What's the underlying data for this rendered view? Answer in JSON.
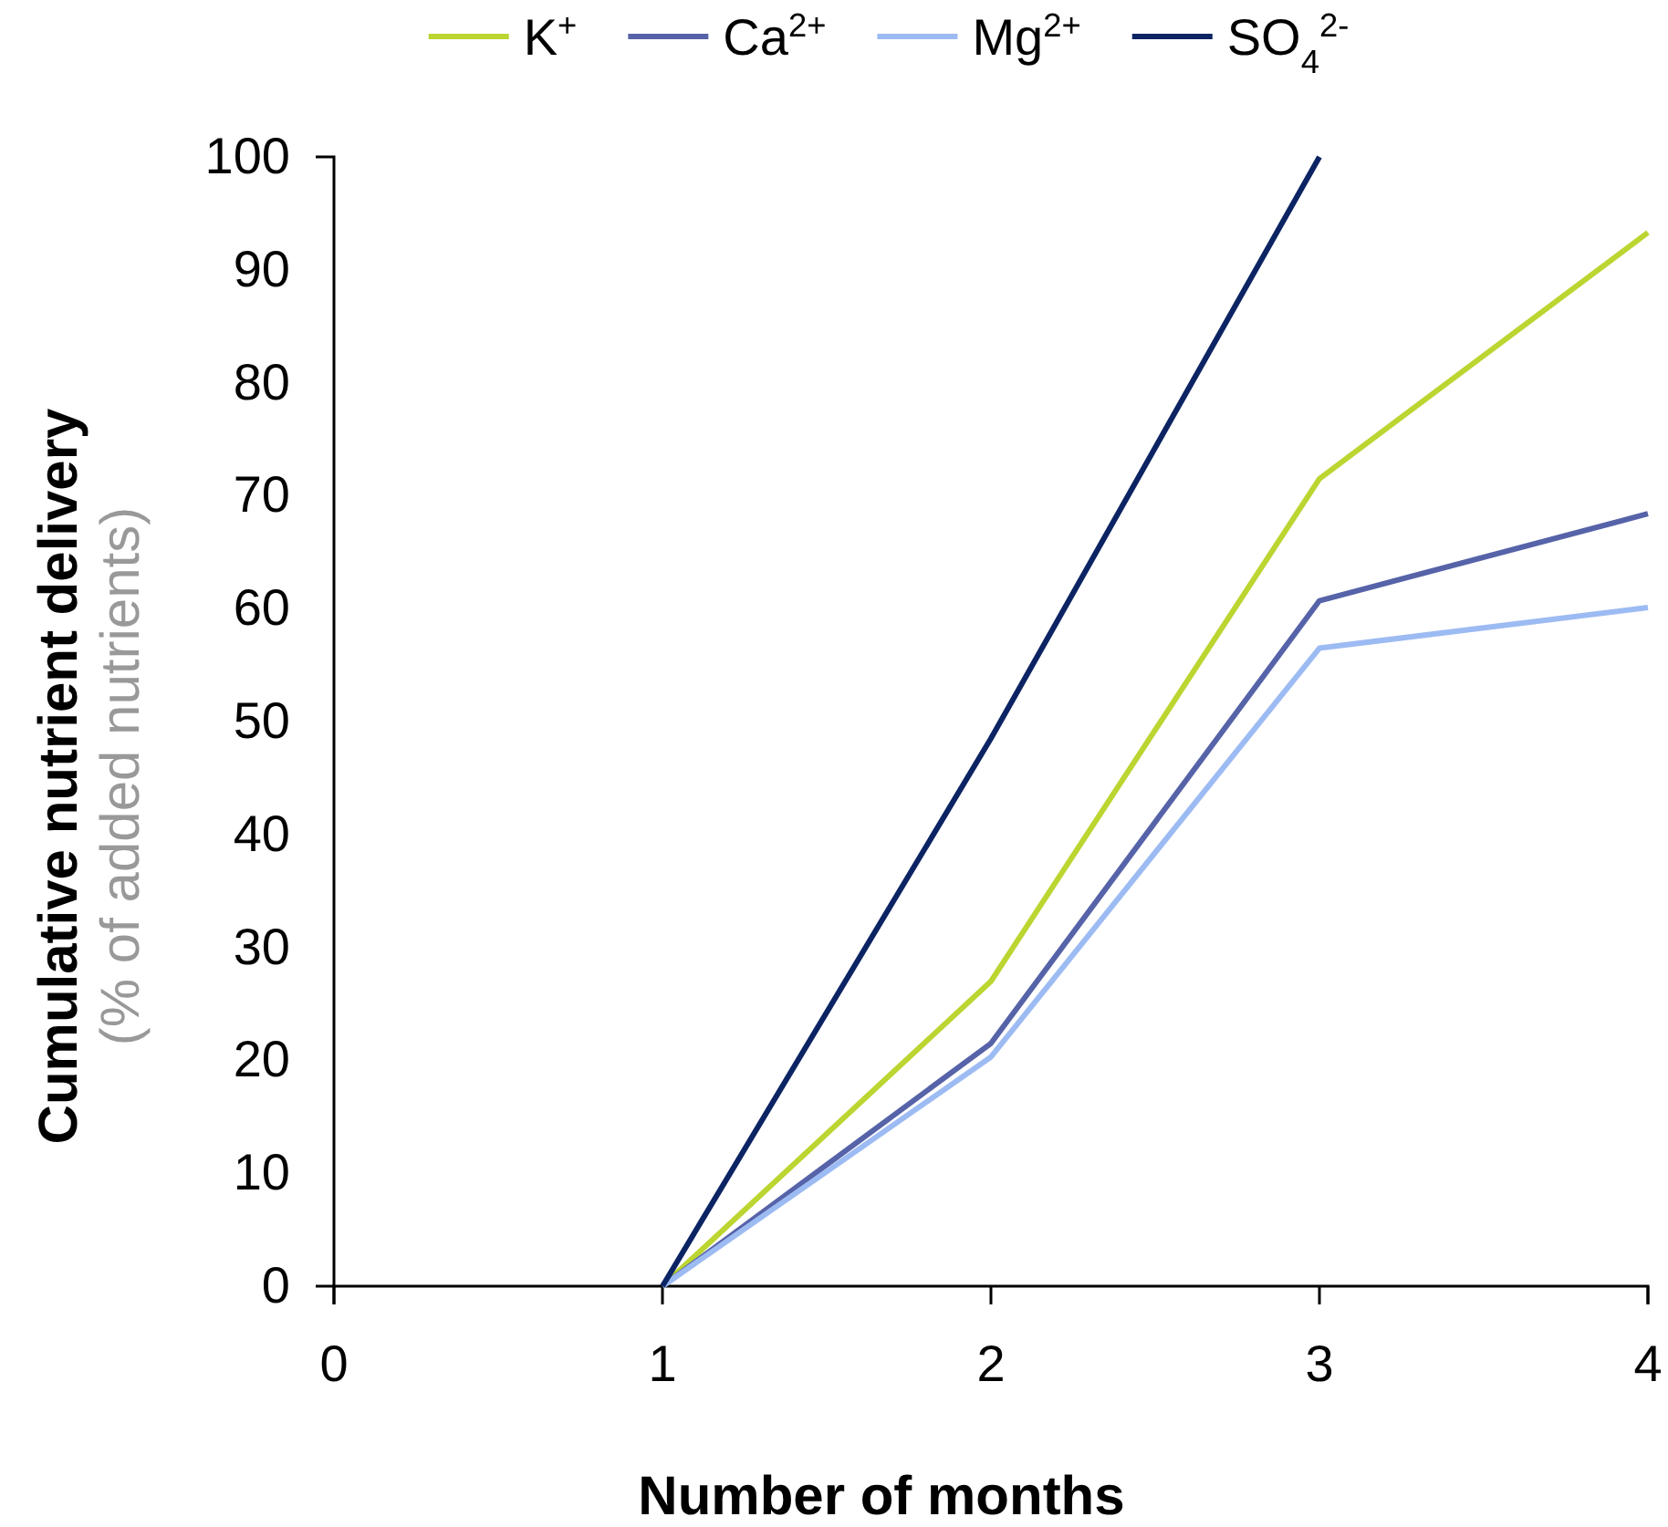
{
  "chart_data": {
    "type": "line",
    "xlabel": "Number of months",
    "ylabel": "Cumulative nutrient delivery\n(% of added nutrients)",
    "x": [
      1,
      2,
      3,
      4
    ],
    "series": [
      {
        "name": "K$^{+}$",
        "color": "#bcd531",
        "values": [
          0,
          27,
          71.5,
          93.3
        ]
      },
      {
        "name": "Ca$^{2+}$",
        "color": "#5663a8",
        "values": [
          0,
          21.5,
          60.7,
          68.4
        ]
      },
      {
        "name": "Mg$^{2+}$",
        "color": "#9dbbf3",
        "values": [
          0,
          20.3,
          56.5,
          60.1
        ]
      },
      {
        "name": "SO$_{4}$$^{2-}$",
        "color": "#0c2463",
        "x": [
          1,
          2,
          3
        ],
        "values": [
          0,
          48.5,
          100
        ]
      }
    ],
    "xlim": [
      0,
      4
    ],
    "xticks": [
      0,
      1,
      2,
      3,
      4
    ],
    "ylim": [
      0,
      100
    ],
    "yticks": [
      0,
      10,
      20,
      30,
      40,
      50,
      60,
      70,
      80,
      90,
      100
    ],
    "legend": "top",
    "grid": false,
    "marker": "none",
    "line_style": "solid"
  }
}
